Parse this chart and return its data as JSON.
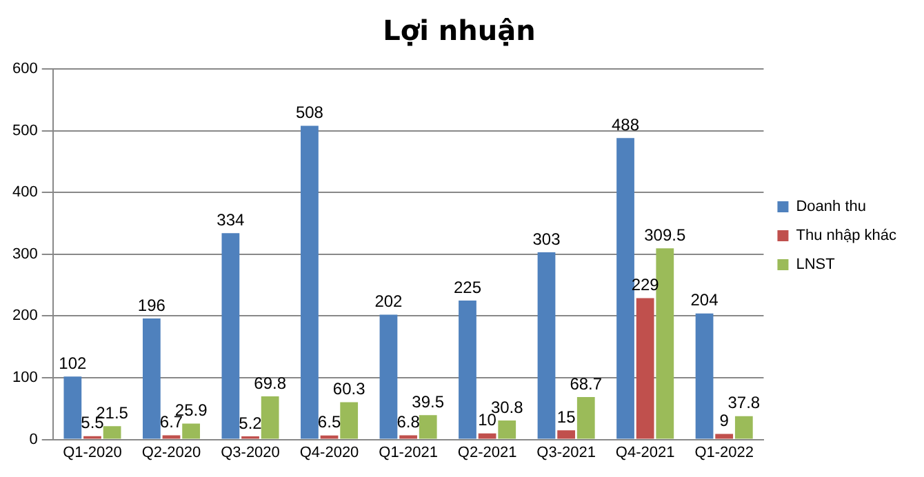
{
  "chart_data": {
    "type": "bar",
    "title": "Lợi nhuận",
    "categories": [
      "Q1-2020",
      "Q2-2020",
      "Q3-2020",
      "Q4-2020",
      "Q1-2021",
      "Q2-2021",
      "Q3-2021",
      "Q4-2021",
      "Q1-2022"
    ],
    "series": [
      {
        "name": "Doanh thu",
        "color": "#4f81bd",
        "values": [
          102,
          196,
          334,
          508,
          202,
          225,
          303,
          488,
          204
        ]
      },
      {
        "name": "Thu nhập khác",
        "color": "#c0504d",
        "values": [
          5.5,
          6.7,
          5.2,
          6.5,
          6.8,
          10,
          15,
          229,
          9
        ]
      },
      {
        "name": "LNST",
        "color": "#9bbb59",
        "values": [
          21.5,
          25.9,
          69.8,
          60.3,
          39.5,
          30.8,
          68.7,
          309.5,
          37.8
        ]
      }
    ],
    "ylim": [
      0,
      600
    ],
    "yticks": [
      0,
      100,
      200,
      300,
      400,
      500,
      600
    ],
    "grid": "y",
    "legend": "right",
    "data_labels": true
  }
}
